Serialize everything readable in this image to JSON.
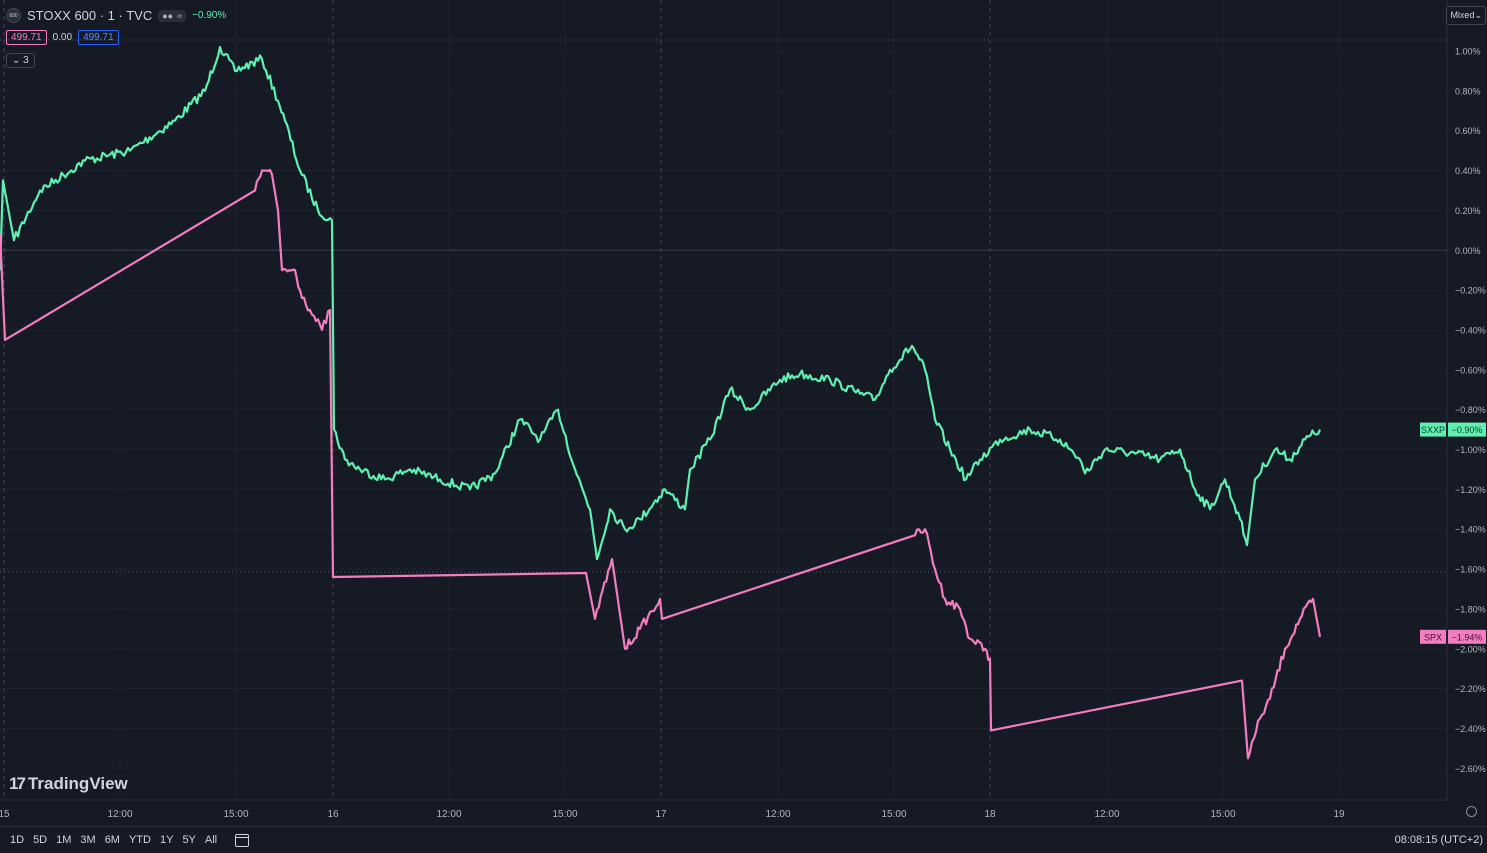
{
  "header": {
    "symbol_logo": "600",
    "title": "STOXX 600 · 1 · TVC",
    "change": "−0.90%",
    "open": "499.71",
    "diff": "0.00",
    "close": "499.71",
    "indicators_count": "3",
    "scale_mode": "Mixed"
  },
  "bottom": {
    "ranges": [
      "1D",
      "5D",
      "1M",
      "3M",
      "6M",
      "YTD",
      "1Y",
      "5Y",
      "All"
    ],
    "clock": "08:08:15 (UTC+2)"
  },
  "brand": {
    "name": "TradingView"
  },
  "colors": {
    "sxxp": "#5ff0b0",
    "spx": "#f27ec0",
    "bg": "#161a25",
    "grid": "#232733"
  },
  "chart_data": {
    "type": "line",
    "x_ticks": [
      "15",
      "12:00",
      "15:00",
      "16",
      "12:00",
      "15:00",
      "17",
      "12:00",
      "15:00",
      "18",
      "12:00",
      "15:00",
      "19"
    ],
    "y_ticks": [
      "1.00%",
      "0.80%",
      "0.60%",
      "0.40%",
      "0.20%",
      "0.00%",
      "−0.20%",
      "−0.40%",
      "−0.60%",
      "−0.80%",
      "−1.00%",
      "−1.20%",
      "−1.40%",
      "−1.60%",
      "−1.80%",
      "−2.00%",
      "−2.20%",
      "−2.40%",
      "−2.60%"
    ],
    "ylim": [
      -2.6,
      1.0
    ],
    "series": [
      {
        "name": "SXXP",
        "last_label": "−0.90%",
        "points": [
          [
            0,
            -0.1
          ],
          [
            3,
            0.35
          ],
          [
            14,
            0.05
          ],
          [
            40,
            0.3
          ],
          [
            85,
            0.45
          ],
          [
            130,
            0.5
          ],
          [
            175,
            0.65
          ],
          [
            205,
            0.8
          ],
          [
            220,
            1.02
          ],
          [
            235,
            0.9
          ],
          [
            262,
            0.96
          ],
          [
            278,
            0.75
          ],
          [
            285,
            0.65
          ],
          [
            300,
            0.4
          ],
          [
            318,
            0.2
          ],
          [
            332,
            0.15
          ],
          [
            334,
            -0.9
          ],
          [
            345,
            -1.05
          ],
          [
            360,
            -1.1
          ],
          [
            385,
            -1.15
          ],
          [
            410,
            -1.1
          ],
          [
            440,
            -1.15
          ],
          [
            470,
            -1.2
          ],
          [
            495,
            -1.12
          ],
          [
            520,
            -0.85
          ],
          [
            540,
            -0.95
          ],
          [
            558,
            -0.8
          ],
          [
            575,
            -1.1
          ],
          [
            590,
            -1.3
          ],
          [
            597,
            -1.55
          ],
          [
            610,
            -1.3
          ],
          [
            625,
            -1.4
          ],
          [
            640,
            -1.35
          ],
          [
            665,
            -1.2
          ],
          [
            685,
            -1.3
          ],
          [
            690,
            -1.1
          ],
          [
            710,
            -0.95
          ],
          [
            730,
            -0.7
          ],
          [
            750,
            -0.8
          ],
          [
            780,
            -0.65
          ],
          [
            800,
            -0.62
          ],
          [
            830,
            -0.65
          ],
          [
            860,
            -0.72
          ],
          [
            875,
            -0.75
          ],
          [
            890,
            -0.6
          ],
          [
            912,
            -0.48
          ],
          [
            925,
            -0.6
          ],
          [
            935,
            -0.85
          ],
          [
            950,
            -1.0
          ],
          [
            966,
            -1.15
          ],
          [
            980,
            -1.05
          ],
          [
            1000,
            -0.95
          ],
          [
            1030,
            -0.9
          ],
          [
            1060,
            -0.95
          ],
          [
            1080,
            -1.05
          ],
          [
            1085,
            -1.12
          ],
          [
            1105,
            -1.0
          ],
          [
            1135,
            -1.02
          ],
          [
            1160,
            -1.05
          ],
          [
            1180,
            -1.0
          ],
          [
            1195,
            -1.2
          ],
          [
            1210,
            -1.3
          ],
          [
            1225,
            -1.15
          ],
          [
            1240,
            -1.35
          ],
          [
            1247,
            -1.48
          ],
          [
            1255,
            -1.15
          ],
          [
            1275,
            -1.0
          ],
          [
            1290,
            -1.05
          ],
          [
            1305,
            -0.95
          ],
          [
            1320,
            -0.9
          ]
        ]
      },
      {
        "name": "SPX",
        "last_label": "−1.94%",
        "points": [
          [
            0,
            0.08
          ],
          [
            5,
            -0.45
          ],
          [
            255,
            0.3
          ],
          [
            262,
            0.4
          ],
          [
            272,
            0.38
          ],
          [
            278,
            0.2
          ],
          [
            282,
            -0.1
          ],
          [
            295,
            -0.1
          ],
          [
            300,
            -0.2
          ],
          [
            310,
            -0.3
          ],
          [
            322,
            -0.4
          ],
          [
            330,
            -0.3
          ],
          [
            333,
            -1.64
          ],
          [
            586,
            -1.62
          ],
          [
            595,
            -1.85
          ],
          [
            612,
            -1.55
          ],
          [
            625,
            -2.0
          ],
          [
            640,
            -1.9
          ],
          [
            660,
            -1.75
          ],
          [
            662,
            -1.85
          ],
          [
            915,
            -1.43
          ],
          [
            925,
            -1.4
          ],
          [
            935,
            -1.6
          ],
          [
            945,
            -1.75
          ],
          [
            960,
            -1.8
          ],
          [
            970,
            -1.95
          ],
          [
            985,
            -2.0
          ],
          [
            990,
            -2.05
          ],
          [
            991,
            -2.41
          ],
          [
            1242,
            -2.16
          ],
          [
            1248,
            -2.55
          ],
          [
            1260,
            -2.35
          ],
          [
            1270,
            -2.25
          ],
          [
            1285,
            -2.0
          ],
          [
            1300,
            -1.85
          ],
          [
            1313,
            -1.75
          ],
          [
            1320,
            -1.94
          ]
        ]
      }
    ]
  }
}
